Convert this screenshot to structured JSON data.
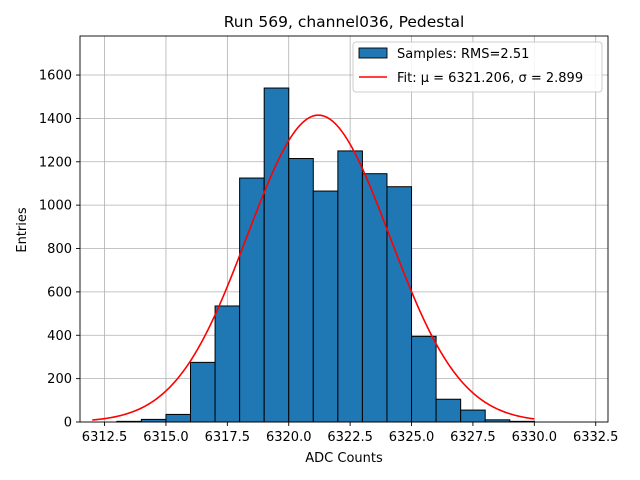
{
  "chart_data": {
    "type": "bar",
    "title": "Run 569, channel036, Pedestal",
    "xlabel": "ADC Counts",
    "ylabel": "Entries",
    "xlim": [
      6311.5,
      6333.0
    ],
    "ylim": [
      0,
      1780
    ],
    "grid": true,
    "legend_position": "top-right",
    "x_ticks": [
      6312.5,
      6315.0,
      6317.5,
      6320.0,
      6322.5,
      6325.0,
      6327.5,
      6330.0,
      6332.5
    ],
    "x_tick_labels": [
      "6312.5",
      "6315.0",
      "6317.5",
      "6320.0",
      "6322.5",
      "6325.0",
      "6327.5",
      "6330.0",
      "6332.5"
    ],
    "y_ticks": [
      0,
      200,
      400,
      600,
      800,
      1000,
      1200,
      1400,
      1600
    ],
    "y_tick_labels": [
      "0",
      "200",
      "400",
      "600",
      "800",
      "1000",
      "1200",
      "1400",
      "1600"
    ],
    "histogram": {
      "name": "Samples: RMS=2.51",
      "color": "#1f77b4",
      "edge_color": "#000000",
      "bin_edges": [
        6313,
        6314,
        6315,
        6316,
        6317,
        6318,
        6319,
        6320,
        6321,
        6322,
        6323,
        6324,
        6325,
        6326,
        6327,
        6328,
        6329,
        6330
      ],
      "counts": [
        3,
        12,
        35,
        275,
        535,
        1125,
        1540,
        1215,
        1065,
        1250,
        1145,
        1085,
        395,
        105,
        55,
        10,
        3
      ]
    },
    "fit": {
      "name": "Fit: μ = 6321.206, σ = 2.899",
      "color": "#ff0000",
      "mu": 6321.206,
      "sigma": 2.899,
      "amplitude": 1415,
      "x_range": [
        6312.0,
        6330.0
      ]
    },
    "legend": [
      "Samples: RMS=2.51",
      "Fit: μ = 6321.206, σ = 2.899"
    ]
  }
}
